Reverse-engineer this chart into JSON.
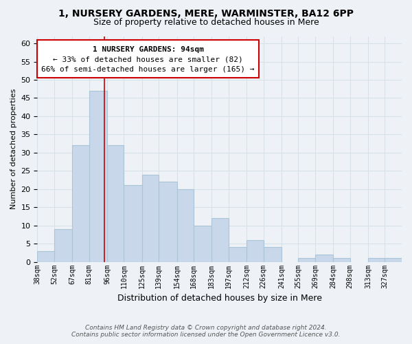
{
  "title": "1, NURSERY GARDENS, MERE, WARMINSTER, BA12 6PP",
  "subtitle": "Size of property relative to detached houses in Mere",
  "xlabel": "Distribution of detached houses by size in Mere",
  "ylabel": "Number of detached properties",
  "bin_labels": [
    "38sqm",
    "52sqm",
    "67sqm",
    "81sqm",
    "96sqm",
    "110sqm",
    "125sqm",
    "139sqm",
    "154sqm",
    "168sqm",
    "183sqm",
    "197sqm",
    "212sqm",
    "226sqm",
    "241sqm",
    "255sqm",
    "269sqm",
    "284sqm",
    "298sqm",
    "313sqm",
    "327sqm"
  ],
  "bin_edges": [
    38,
    52,
    67,
    81,
    96,
    110,
    125,
    139,
    154,
    168,
    183,
    197,
    212,
    226,
    241,
    255,
    269,
    284,
    298,
    313,
    327,
    341
  ],
  "bar_values": [
    3,
    9,
    32,
    47,
    32,
    21,
    24,
    22,
    20,
    10,
    12,
    4,
    6,
    4,
    0,
    1,
    2,
    1,
    0,
    1,
    1
  ],
  "bar_color": "#c8d8ea",
  "bar_edge_color": "#aac4d8",
  "property_line_x": 94,
  "ylim": [
    0,
    62
  ],
  "yticks": [
    0,
    5,
    10,
    15,
    20,
    25,
    30,
    35,
    40,
    45,
    50,
    55,
    60
  ],
  "annotation_line1": "1 NURSERY GARDENS: 94sqm",
  "annotation_line2": "← 33% of detached houses are smaller (82)",
  "annotation_line3": "66% of semi-detached houses are larger (165) →",
  "footer_line1": "Contains HM Land Registry data © Crown copyright and database right 2024.",
  "footer_line2": "Contains public sector information licensed under the Open Government Licence v3.0.",
  "background_color": "#eef2f6",
  "grid_color": "#d8e0e8",
  "annotation_box_color": "#ffffff",
  "annotation_box_edge_color": "#cc0000",
  "property_line_color": "#cc0000"
}
